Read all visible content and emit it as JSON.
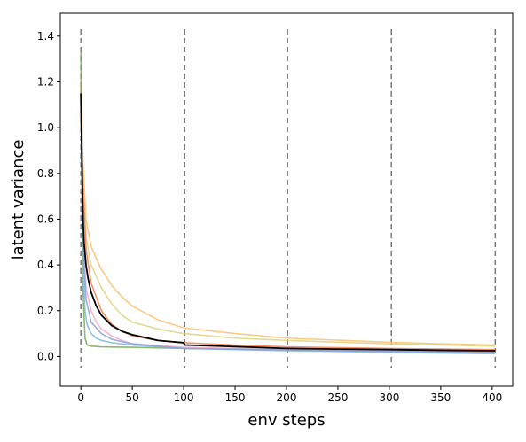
{
  "chart_data": {
    "type": "line",
    "xlabel": "env steps",
    "ylabel": "latent variance",
    "xlim": [
      -20,
      420
    ],
    "ylim": [
      -0.13,
      1.5
    ],
    "xticks": [
      0,
      50,
      100,
      150,
      200,
      250,
      300,
      350,
      400
    ],
    "yticks": [
      0.0,
      0.2,
      0.4,
      0.6,
      0.8,
      1.0,
      1.2,
      1.4
    ],
    "grid": false,
    "vlines": [
      0,
      101,
      201,
      302,
      403
    ],
    "vline_color": "#7a7a7a",
    "series": [
      {
        "color": "#fdbf6f",
        "opacity": 0.85,
        "x": [
          0,
          2,
          5,
          10,
          20,
          30,
          40,
          50,
          75,
          100,
          150,
          200,
          300,
          350,
          403
        ],
        "y": [
          1.18,
          0.85,
          0.6,
          0.48,
          0.38,
          0.31,
          0.26,
          0.22,
          0.16,
          0.125,
          0.1,
          0.08,
          0.062,
          0.055,
          0.05
        ]
      },
      {
        "color": "#d8d27a",
        "opacity": 0.8,
        "x": [
          0,
          2,
          5,
          10,
          20,
          30,
          40,
          50,
          75,
          100,
          150,
          200,
          300,
          403
        ],
        "y": [
          1.14,
          0.75,
          0.52,
          0.4,
          0.3,
          0.23,
          0.18,
          0.15,
          0.12,
          0.1,
          0.08,
          0.07,
          0.055,
          0.045
        ]
      },
      {
        "color": "#f08050",
        "opacity": 0.85,
        "x": [
          0,
          2,
          5,
          10,
          20,
          30,
          40,
          50,
          75,
          100,
          150,
          200,
          300,
          403
        ],
        "y": [
          1.2,
          0.75,
          0.47,
          0.32,
          0.2,
          0.14,
          0.11,
          0.09,
          0.07,
          0.06,
          0.05,
          0.042,
          0.035,
          0.03
        ]
      },
      {
        "color": "#6fa84a",
        "opacity": 0.8,
        "x": [
          0,
          1,
          2,
          4,
          6,
          10,
          20,
          50,
          100,
          200,
          300,
          403
        ],
        "y": [
          1.33,
          0.7,
          0.3,
          0.08,
          0.05,
          0.045,
          0.042,
          0.04,
          0.035,
          0.03,
          0.025,
          0.02
        ]
      },
      {
        "color": "#f5a9c8",
        "opacity": 0.85,
        "x": [
          0,
          2,
          5,
          10,
          15,
          20,
          30,
          40,
          50,
          100,
          200,
          300,
          403
        ],
        "y": [
          1.1,
          0.55,
          0.3,
          0.2,
          0.15,
          0.12,
          0.09,
          0.07,
          0.055,
          0.04,
          0.03,
          0.025,
          0.02
        ]
      },
      {
        "color": "#7ab8e0",
        "opacity": 0.85,
        "x": [
          0,
          2,
          4,
          6,
          10,
          15,
          20,
          30,
          50,
          100,
          200,
          300,
          403
        ],
        "y": [
          1.15,
          0.45,
          0.2,
          0.14,
          0.1,
          0.08,
          0.07,
          0.06,
          0.05,
          0.035,
          0.025,
          0.018,
          0.012
        ]
      },
      {
        "color": "#8aa0d8",
        "opacity": 0.85,
        "x": [
          0,
          2,
          5,
          10,
          20,
          30,
          50,
          75,
          100,
          200,
          300,
          403
        ],
        "y": [
          1.12,
          0.5,
          0.25,
          0.15,
          0.1,
          0.075,
          0.055,
          0.045,
          0.035,
          0.028,
          0.022,
          0.018
        ]
      },
      {
        "color": "#000000",
        "opacity": 1.0,
        "width": 1.8,
        "x": [
          0,
          1,
          2,
          3,
          5,
          7,
          10,
          15,
          20,
          30,
          40,
          50,
          75,
          100,
          101,
          150,
          200,
          250,
          300,
          350,
          403
        ],
        "y": [
          1.15,
          0.85,
          0.62,
          0.5,
          0.4,
          0.34,
          0.28,
          0.22,
          0.18,
          0.135,
          0.11,
          0.095,
          0.07,
          0.06,
          0.05,
          0.043,
          0.035,
          0.032,
          0.03,
          0.027,
          0.025
        ]
      }
    ]
  }
}
